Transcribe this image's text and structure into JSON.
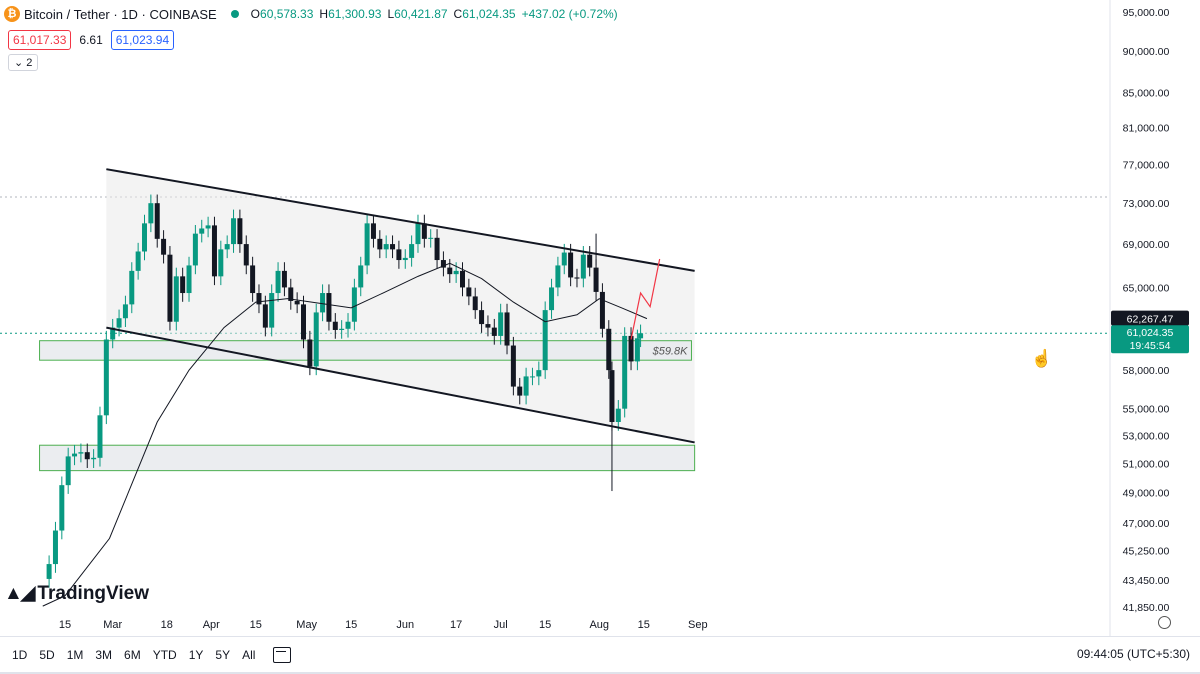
{
  "header": {
    "symbol": "Bitcoin / Tether · 1D · COINBASE",
    "o_label": "O",
    "o": "60,578.33",
    "h_label": "H",
    "h": "61,300.93",
    "l_label": "L",
    "l": "60,421.87",
    "c_label": "C",
    "c": "61,024.35",
    "change": "+437.02 (+0.72%)",
    "sell_price": "61,017.33",
    "spread": "6.61",
    "buy_price": "61,023.94",
    "indicators_count": "2",
    "logo_glyph": "₿"
  },
  "watermark": "TradingView",
  "toolbar": {
    "timeframes": [
      "1D",
      "5D",
      "1M",
      "3M",
      "6M",
      "YTD",
      "1Y",
      "5Y",
      "All"
    ],
    "clock": "09:44:05 (UTC+5:30)"
  },
  "colors": {
    "up": "#089981",
    "down": "#131722",
    "ma": "#131722",
    "zone_border": "#4caf50",
    "channel_fill": "#e9e9ea",
    "projection": "#f23645",
    "label_bg": "#131722"
  },
  "chart_data": {
    "type": "candlestick",
    "title": "Bitcoin / Tether · 1D · COINBASE",
    "y_scale": "log",
    "y_ticks": [
      95000,
      90000,
      85000,
      81000,
      77000,
      73000,
      69000,
      65000,
      58000,
      55000,
      53000,
      51000,
      49000,
      47000,
      45250,
      43450,
      41850
    ],
    "y_tick_labels": [
      "95,000.00",
      "90,000.00",
      "85,000.00",
      "81,000.00",
      "77,000.00",
      "73,000.00",
      "69,000.00",
      "65,000.00",
      "58,000.00",
      "55,000.00",
      "53,000.00",
      "51,000.00",
      "49,000.00",
      "47,000.00",
      "45,250.00",
      "43,450.00",
      "41,850.00"
    ],
    "x_tick_labels": [
      {
        "label": "15",
        "date": "2024-02-15"
      },
      {
        "label": "Mar",
        "date": "2024-03-01"
      },
      {
        "label": "18",
        "date": "2024-03-18"
      },
      {
        "label": "Apr",
        "date": "2024-04-01"
      },
      {
        "label": "15",
        "date": "2024-04-15"
      },
      {
        "label": "May",
        "date": "2024-05-01"
      },
      {
        "label": "15",
        "date": "2024-05-15"
      },
      {
        "label": "Jun",
        "date": "2024-06-01"
      },
      {
        "label": "17",
        "date": "2024-06-17"
      },
      {
        "label": "Jul",
        "date": "2024-07-01"
      },
      {
        "label": "15",
        "date": "2024-07-15"
      },
      {
        "label": "Aug",
        "date": "2024-08-01"
      },
      {
        "label": "15",
        "date": "2024-08-15"
      },
      {
        "label": "Sep",
        "date": "2024-09-01"
      }
    ],
    "closes": [
      [
        "2024-02-08",
        43500
      ],
      [
        "2024-02-10",
        44400
      ],
      [
        "2024-02-12",
        46500
      ],
      [
        "2024-02-14",
        49500
      ],
      [
        "2024-02-16",
        51500
      ],
      [
        "2024-02-18",
        51700
      ],
      [
        "2024-02-20",
        51800
      ],
      [
        "2024-02-22",
        51300
      ],
      [
        "2024-02-24",
        51400
      ],
      [
        "2024-02-26",
        54500
      ],
      [
        "2024-02-28",
        60500
      ],
      [
        "2024-03-01",
        61500
      ],
      [
        "2024-03-03",
        62300
      ],
      [
        "2024-03-05",
        63500
      ],
      [
        "2024-03-07",
        66500
      ],
      [
        "2024-03-09",
        68300
      ],
      [
        "2024-03-11",
        71000
      ],
      [
        "2024-03-13",
        73000
      ],
      [
        "2024-03-15",
        69500
      ],
      [
        "2024-03-17",
        68000
      ],
      [
        "2024-03-19",
        62000
      ],
      [
        "2024-03-21",
        66000
      ],
      [
        "2024-03-23",
        64500
      ],
      [
        "2024-03-25",
        67000
      ],
      [
        "2024-03-27",
        70000
      ],
      [
        "2024-03-29",
        70500
      ],
      [
        "2024-03-31",
        70800
      ],
      [
        "2024-04-02",
        66000
      ],
      [
        "2024-04-04",
        68500
      ],
      [
        "2024-04-06",
        69000
      ],
      [
        "2024-04-08",
        71500
      ],
      [
        "2024-04-10",
        69000
      ],
      [
        "2024-04-12",
        67000
      ],
      [
        "2024-04-14",
        64500
      ],
      [
        "2024-04-16",
        63500
      ],
      [
        "2024-04-18",
        61500
      ],
      [
        "2024-04-20",
        64500
      ],
      [
        "2024-04-22",
        66500
      ],
      [
        "2024-04-24",
        65000
      ],
      [
        "2024-04-26",
        63800
      ],
      [
        "2024-04-28",
        63500
      ],
      [
        "2024-04-30",
        60500
      ],
      [
        "2024-05-02",
        58300
      ],
      [
        "2024-05-04",
        62800
      ],
      [
        "2024-05-06",
        64500
      ],
      [
        "2024-05-08",
        62000
      ],
      [
        "2024-05-10",
        61300
      ],
      [
        "2024-05-12",
        61400
      ],
      [
        "2024-05-14",
        62000
      ],
      [
        "2024-05-16",
        65000
      ],
      [
        "2024-05-18",
        67000
      ],
      [
        "2024-05-20",
        71000
      ],
      [
        "2024-05-22",
        69500
      ],
      [
        "2024-05-24",
        68500
      ],
      [
        "2024-05-26",
        69000
      ],
      [
        "2024-05-28",
        68500
      ],
      [
        "2024-05-30",
        67500
      ],
      [
        "2024-06-01",
        67700
      ],
      [
        "2024-06-03",
        69000
      ],
      [
        "2024-06-05",
        71000
      ],
      [
        "2024-06-07",
        69500
      ],
      [
        "2024-06-09",
        69600
      ],
      [
        "2024-06-11",
        67500
      ],
      [
        "2024-06-13",
        66800
      ],
      [
        "2024-06-15",
        66200
      ],
      [
        "2024-06-17",
        66500
      ],
      [
        "2024-06-19",
        65000
      ],
      [
        "2024-06-21",
        64200
      ],
      [
        "2024-06-23",
        63000
      ],
      [
        "2024-06-25",
        61800
      ],
      [
        "2024-06-27",
        61500
      ],
      [
        "2024-06-29",
        60800
      ],
      [
        "2024-07-01",
        62800
      ],
      [
        "2024-07-03",
        60000
      ],
      [
        "2024-07-05",
        56700
      ],
      [
        "2024-07-07",
        56000
      ],
      [
        "2024-07-09",
        57500
      ],
      [
        "2024-07-11",
        57500
      ],
      [
        "2024-07-13",
        58000
      ],
      [
        "2024-07-15",
        63000
      ],
      [
        "2024-07-17",
        65000
      ],
      [
        "2024-07-19",
        67000
      ],
      [
        "2024-07-21",
        68200
      ],
      [
        "2024-07-23",
        65900
      ],
      [
        "2024-07-25",
        65800
      ],
      [
        "2024-07-27",
        68000
      ],
      [
        "2024-07-29",
        66800
      ],
      [
        "2024-07-31",
        64600
      ],
      [
        "2024-08-02",
        61400
      ],
      [
        "2024-08-04",
        58000
      ],
      [
        "2024-08-05",
        54000
      ],
      [
        "2024-08-07",
        55000
      ],
      [
        "2024-08-09",
        60800
      ],
      [
        "2024-08-11",
        58700
      ],
      [
        "2024-08-13",
        60600
      ],
      [
        "2024-08-14",
        61024.35
      ]
    ],
    "last_candle": {
      "date": "2024-08-14",
      "open": 60578.33,
      "high": 61300.93,
      "low": 60421.87,
      "close": 61024.35
    },
    "moving_average": [
      [
        "2024-02-08",
        41900
      ],
      [
        "2024-02-15",
        42500
      ],
      [
        "2024-02-29",
        46000
      ],
      [
        "2024-03-15",
        54000
      ],
      [
        "2024-03-25",
        58000
      ],
      [
        "2024-04-05",
        61500
      ],
      [
        "2024-04-15",
        63700
      ],
      [
        "2024-04-25",
        64000
      ],
      [
        "2024-05-05",
        63600
      ],
      [
        "2024-05-15",
        63200
      ],
      [
        "2024-05-25",
        64500
      ],
      [
        "2024-06-05",
        66000
      ],
      [
        "2024-06-15",
        67200
      ],
      [
        "2024-06-25",
        65800
      ],
      [
        "2024-07-05",
        63700
      ],
      [
        "2024-07-15",
        62000
      ],
      [
        "2024-07-25",
        62600
      ],
      [
        "2024-08-01",
        64000
      ],
      [
        "2024-08-08",
        63200
      ],
      [
        "2024-08-16",
        62267.47
      ]
    ],
    "channel_upper": [
      [
        "2024-02-28",
        76500
      ],
      [
        "2024-08-31",
        66500
      ]
    ],
    "channel_lower": [
      [
        "2024-02-28",
        61500
      ],
      [
        "2024-08-31",
        52500
      ]
    ],
    "support_zones": [
      {
        "from": "2024-02-07",
        "to": "2024-08-30",
        "low": 58800,
        "high": 60400,
        "label": "$59.8K"
      },
      {
        "from": "2024-02-07",
        "to": "2024-08-31",
        "low": 50500,
        "high": 52300
      }
    ],
    "projection": [
      [
        "2024-08-11",
        60500
      ],
      [
        "2024-08-14",
        64500
      ],
      [
        "2024-08-17",
        63300
      ],
      [
        "2024-08-20",
        67600
      ]
    ],
    "price_labels": [
      {
        "value": 62267.47,
        "text": "62,267.47"
      },
      {
        "value": 61024.35,
        "text": "61,024.35",
        "countdown": "19:45:54"
      }
    ]
  }
}
